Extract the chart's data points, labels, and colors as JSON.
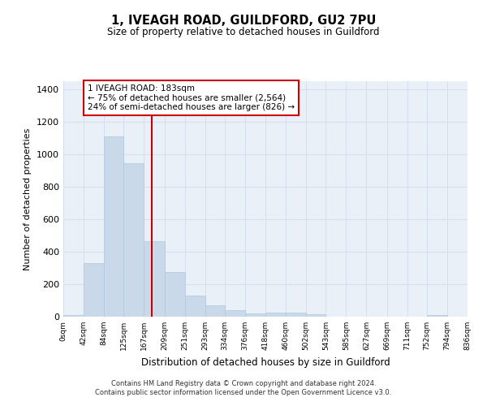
{
  "title": "1, IVEAGH ROAD, GUILDFORD, GU2 7PU",
  "subtitle": "Size of property relative to detached houses in Guildford",
  "xlabel": "Distribution of detached houses by size in Guildford",
  "ylabel": "Number of detached properties",
  "bar_color": "#c9d9ea",
  "bar_edge_color": "#b0c8de",
  "grid_color": "#d4dff0",
  "background_color": "#eaf0f8",
  "vline_x": 183,
  "vline_color": "#cc0000",
  "annotation_line1": "1 IVEAGH ROAD: 183sqm",
  "annotation_line2": "← 75% of detached houses are smaller (2,564)",
  "annotation_line3": "24% of semi-detached houses are larger (826) →",
  "annotation_box_color": "#ffffff",
  "annotation_box_edge": "#cc0000",
  "bin_edges": [
    0,
    42,
    84,
    125,
    167,
    209,
    251,
    293,
    334,
    376,
    418,
    460,
    502,
    543,
    585,
    627,
    669,
    711,
    752,
    794,
    836
  ],
  "bar_heights": [
    10,
    328,
    1112,
    946,
    465,
    275,
    130,
    70,
    40,
    22,
    25,
    25,
    17,
    2,
    2,
    2,
    0,
    0,
    12,
    0
  ],
  "ylim": [
    0,
    1450
  ],
  "yticks": [
    0,
    200,
    400,
    600,
    800,
    1000,
    1200,
    1400
  ],
  "footnote1": "Contains HM Land Registry data © Crown copyright and database right 2024.",
  "footnote2": "Contains public sector information licensed under the Open Government Licence v3.0."
}
